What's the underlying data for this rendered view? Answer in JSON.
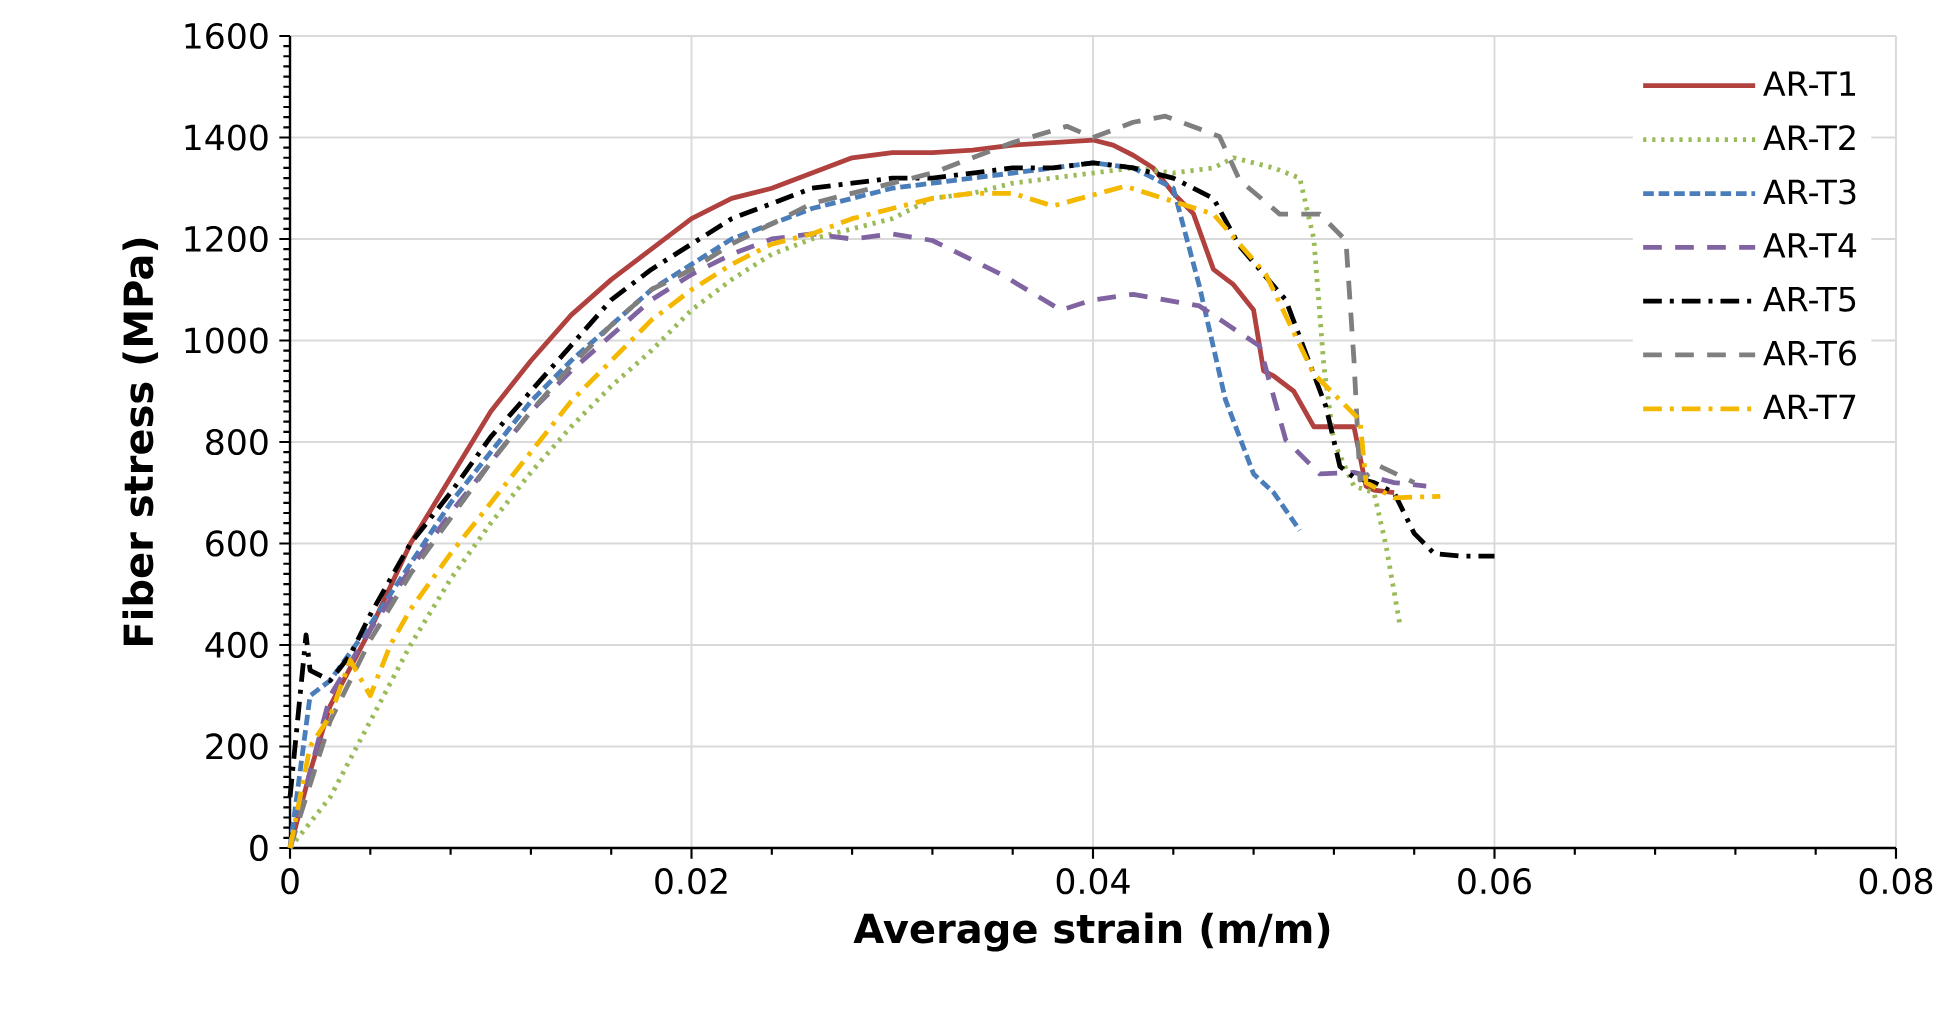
{
  "chart_data": {
    "type": "line",
    "xlabel": "Average strain (m/m)",
    "ylabel": "Fiber stress (MPa)",
    "xlim": [
      0,
      0.08
    ],
    "ylim": [
      0,
      1600
    ],
    "xticks": [
      0,
      0.02,
      0.04,
      0.06,
      0.08
    ],
    "yticks": [
      0,
      200,
      400,
      600,
      800,
      1000,
      1200,
      1400,
      1600
    ],
    "grid": true,
    "legend": "top right",
    "marker": "none",
    "series": [
      {
        "name": "AR-T1",
        "color": "#b0413e",
        "line_style": "solid",
        "x": [
          0,
          0.001,
          0.002,
          0.004,
          0.006,
          0.008,
          0.01,
          0.012,
          0.014,
          0.016,
          0.018,
          0.02,
          0.022,
          0.024,
          0.026,
          0.028,
          0.03,
          0.032,
          0.034,
          0.036,
          0.038,
          0.04,
          0.041,
          0.042,
          0.043,
          0.044,
          0.045,
          0.046,
          0.047,
          0.048,
          0.0485,
          0.049,
          0.05,
          0.051,
          0.052,
          0.053,
          0.0536,
          0.054,
          0.055
        ],
        "values": [
          0,
          150,
          280,
          430,
          600,
          730,
          860,
          960,
          1050,
          1120,
          1180,
          1240,
          1280,
          1300,
          1330,
          1360,
          1370,
          1370,
          1375,
          1385,
          1390,
          1395,
          1385,
          1365,
          1340,
          1290,
          1250,
          1140,
          1110,
          1060,
          940,
          930,
          900,
          830,
          830,
          830,
          713,
          705,
          700
        ]
      },
      {
        "name": "AR-T2",
        "color": "#9bbb59",
        "line_style": "dotted",
        "x": [
          0,
          0.002,
          0.004,
          0.006,
          0.008,
          0.01,
          0.012,
          0.014,
          0.016,
          0.018,
          0.02,
          0.022,
          0.024,
          0.026,
          0.028,
          0.03,
          0.032,
          0.034,
          0.036,
          0.038,
          0.04,
          0.042,
          0.044,
          0.046,
          0.047,
          0.048,
          0.049,
          0.0503,
          0.051,
          0.0515,
          0.052,
          0.053,
          0.054,
          0.0546,
          0.0553
        ],
        "values": [
          0,
          100,
          250,
          400,
          530,
          640,
          740,
          830,
          910,
          980,
          1060,
          1120,
          1170,
          1200,
          1220,
          1240,
          1280,
          1290,
          1310,
          1320,
          1330,
          1340,
          1330,
          1340,
          1360,
          1350,
          1340,
          1320,
          1200,
          950,
          800,
          713,
          700,
          595,
          437
        ]
      },
      {
        "name": "AR-T3",
        "color": "#4a7ebb",
        "line_style": "dashed",
        "x": [
          0,
          0.001,
          0.002,
          0.004,
          0.006,
          0.008,
          0.01,
          0.012,
          0.014,
          0.016,
          0.018,
          0.02,
          0.022,
          0.024,
          0.026,
          0.028,
          0.03,
          0.032,
          0.034,
          0.036,
          0.038,
          0.04,
          0.042,
          0.044,
          0.0453,
          0.0466,
          0.048,
          0.049,
          0.0503
        ],
        "values": [
          0,
          300,
          330,
          440,
          560,
          680,
          780,
          880,
          960,
          1030,
          1100,
          1150,
          1200,
          1230,
          1260,
          1280,
          1300,
          1310,
          1320,
          1330,
          1340,
          1350,
          1340,
          1300,
          1107,
          883,
          737,
          700,
          626
        ]
      },
      {
        "name": "AR-T4",
        "color": "#8064a2",
        "line_style": "longdashed",
        "x": [
          0,
          0.002,
          0.004,
          0.006,
          0.008,
          0.01,
          0.012,
          0.014,
          0.016,
          0.018,
          0.02,
          0.022,
          0.024,
          0.026,
          0.028,
          0.03,
          0.032,
          0.0354,
          0.0384,
          0.04,
          0.042,
          0.0453,
          0.0483,
          0.0496,
          0.0513,
          0.053,
          0.055,
          0.0566
        ],
        "values": [
          0,
          300,
          430,
          550,
          660,
          760,
          860,
          940,
          1010,
          1080,
          1130,
          1170,
          1200,
          1210,
          1200,
          1210,
          1197,
          1131,
          1060,
          1080,
          1091,
          1068,
          989,
          804,
          737,
          740,
          720,
          713
        ]
      },
      {
        "name": "AR-T5",
        "color": "#000000",
        "line_style": "dashdot",
        "x": [
          0,
          0.0005,
          0.0008,
          0.001,
          0.002,
          0.003,
          0.004,
          0.006,
          0.008,
          0.01,
          0.012,
          0.014,
          0.016,
          0.018,
          0.02,
          0.022,
          0.024,
          0.026,
          0.028,
          0.03,
          0.032,
          0.034,
          0.036,
          0.038,
          0.04,
          0.042,
          0.044,
          0.046,
          0.0473,
          0.0496,
          0.0516,
          0.0523,
          0.053,
          0.054,
          0.055,
          0.056,
          0.057,
          0.0583,
          0.06
        ],
        "values": [
          100,
          300,
          420,
          350,
          330,
          380,
          460,
          600,
          700,
          810,
          900,
          990,
          1080,
          1140,
          1190,
          1240,
          1270,
          1300,
          1310,
          1320,
          1320,
          1330,
          1340,
          1340,
          1350,
          1340,
          1320,
          1280,
          1186,
          1080,
          870,
          752,
          730,
          720,
          700,
          620,
          580,
          575,
          575
        ]
      },
      {
        "name": "AR-T6",
        "color": "#7f7f7f",
        "line_style": "longdashed",
        "x": [
          0,
          0.002,
          0.004,
          0.006,
          0.008,
          0.01,
          0.012,
          0.014,
          0.016,
          0.018,
          0.02,
          0.022,
          0.024,
          0.026,
          0.028,
          0.03,
          0.032,
          0.034,
          0.036,
          0.0387,
          0.04,
          0.042,
          0.0436,
          0.0463,
          0.0473,
          0.0493,
          0.0513,
          0.0526,
          0.053,
          0.0533,
          0.0543,
          0.056
        ],
        "values": [
          0,
          250,
          410,
          540,
          650,
          760,
          860,
          950,
          1030,
          1100,
          1140,
          1190,
          1230,
          1270,
          1290,
          1310,
          1330,
          1360,
          1390,
          1422,
          1400,
          1430,
          1442,
          1402,
          1316,
          1249,
          1249,
          1197,
          961,
          725,
          752,
          720
        ]
      },
      {
        "name": "AR-T7",
        "color": "#f5b800",
        "line_style": "dashdot",
        "x": [
          0,
          0.001,
          0.002,
          0.003,
          0.004,
          0.005,
          0.006,
          0.008,
          0.01,
          0.012,
          0.014,
          0.016,
          0.018,
          0.02,
          0.022,
          0.024,
          0.026,
          0.028,
          0.03,
          0.032,
          0.034,
          0.036,
          0.038,
          0.0416,
          0.046,
          0.0486,
          0.051,
          0.0533,
          0.0536,
          0.055,
          0.0573
        ],
        "values": [
          0,
          200,
          260,
          370,
          300,
          400,
          470,
          580,
          680,
          780,
          880,
          960,
          1040,
          1100,
          1150,
          1190,
          1210,
          1240,
          1260,
          1280,
          1290,
          1290,
          1265,
          1304,
          1249,
          1131,
          934,
          843,
          720,
          690,
          693
        ]
      }
    ]
  }
}
